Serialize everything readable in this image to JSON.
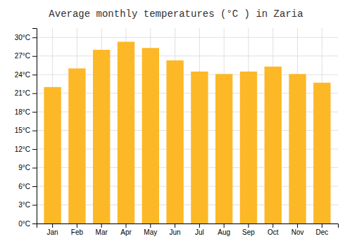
{
  "chart_data": {
    "type": "bar",
    "title": "Average monthly temperatures (°C ) in Zaria",
    "categories": [
      "Jan",
      "Feb",
      "Mar",
      "Apr",
      "May",
      "Jun",
      "Jul",
      "Aug",
      "Sep",
      "Oct",
      "Nov",
      "Dec"
    ],
    "values": [
      22.0,
      25.0,
      28.0,
      29.3,
      28.3,
      26.3,
      24.5,
      24.1,
      24.5,
      25.3,
      24.1,
      22.7
    ],
    "color": "#FDB827",
    "ylim": [
      0,
      31.5
    ],
    "yticks": [
      {
        "value": 0,
        "label": "0°C"
      },
      {
        "value": 3,
        "label": "3°C"
      },
      {
        "value": 6,
        "label": "6°C"
      },
      {
        "value": 9,
        "label": "9°C"
      },
      {
        "value": 12,
        "label": "12°C"
      },
      {
        "value": 15,
        "label": "15°C"
      },
      {
        "value": 18,
        "label": "18°C"
      },
      {
        "value": 21,
        "label": "21°C"
      },
      {
        "value": 24,
        "label": "24°C"
      },
      {
        "value": 27,
        "label": "27°C"
      },
      {
        "value": 30,
        "label": "30°C"
      }
    ],
    "grid": true
  }
}
